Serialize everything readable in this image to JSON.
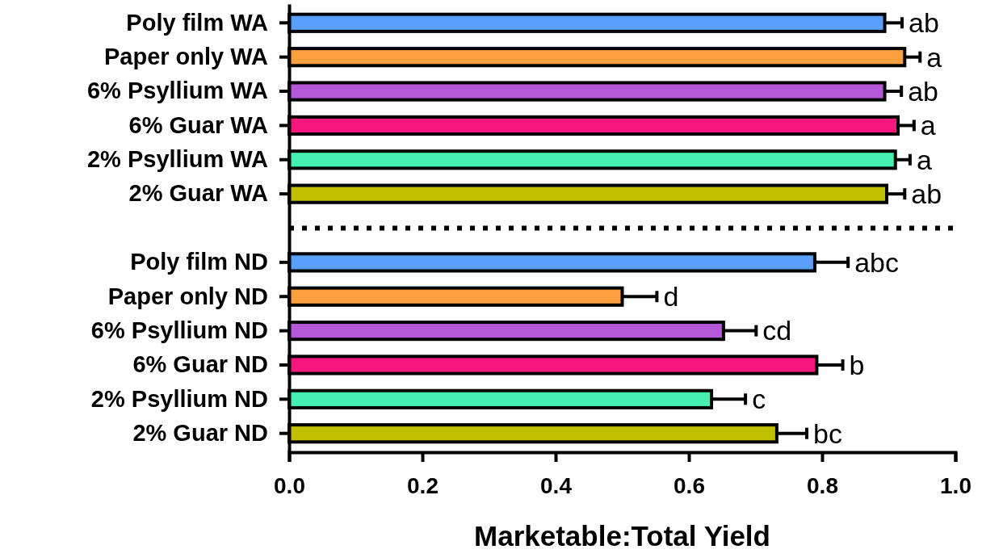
{
  "chart_data": {
    "type": "bar",
    "orientation": "horizontal",
    "xlabel": "Marketable:Total Yield",
    "categories": [
      "Poly film WA",
      "Paper only WA",
      "6% Psyllium WA",
      "6% Guar WA",
      "2% Psyllium WA",
      "2% Guar WA",
      null,
      "Poly film ND",
      "Paper only ND",
      "6% Psyllium ND",
      "6% Guar ND",
      "2% Psyllium ND",
      "2% Guar ND"
    ],
    "values": [
      0.894,
      0.924,
      0.894,
      0.914,
      0.91,
      0.897,
      null,
      0.789,
      0.5,
      0.652,
      0.792,
      0.634,
      0.732
    ],
    "colors": [
      "#5aa0fa",
      "#ffa040",
      "#b558d8",
      "#f5177e",
      "#45f0b0",
      "#c0c000",
      null,
      "#5aa0fa",
      "#ffa040",
      "#b558d8",
      "#f5177e",
      "#45f0b0",
      "#c0c000"
    ],
    "errors": [
      [
        0.894,
        0.92
      ],
      [
        0.924,
        0.947
      ],
      [
        0.894,
        0.919
      ],
      [
        0.914,
        0.938
      ],
      [
        0.91,
        0.932
      ],
      [
        0.897,
        0.924
      ],
      null,
      [
        0.789,
        0.839
      ],
      [
        0.5,
        0.552
      ],
      [
        0.652,
        0.701
      ],
      [
        0.792,
        0.831
      ],
      [
        0.634,
        0.685
      ],
      [
        0.732,
        0.777
      ]
    ],
    "value_labels": [
      "ab",
      "a",
      "ab",
      "a",
      "a",
      "ab",
      null,
      "abc",
      "d",
      "cd",
      "b",
      "c",
      "bc"
    ],
    "xlim": [
      0,
      1.0
    ],
    "xticks": [
      {
        "value": 0,
        "label": "0.0"
      },
      {
        "value": 0.2,
        "label": "0.2"
      },
      {
        "value": 0.4,
        "label": "0.4"
      },
      {
        "value": 0.6,
        "label": "0.6"
      },
      {
        "value": 0.8,
        "label": "0.8"
      },
      {
        "value": 1.0,
        "label": "1.0"
      }
    ],
    "ref_lines": [
      {
        "axis": "y",
        "value": null,
        "line_style": "dotted"
      }
    ],
    "grid": false
  }
}
